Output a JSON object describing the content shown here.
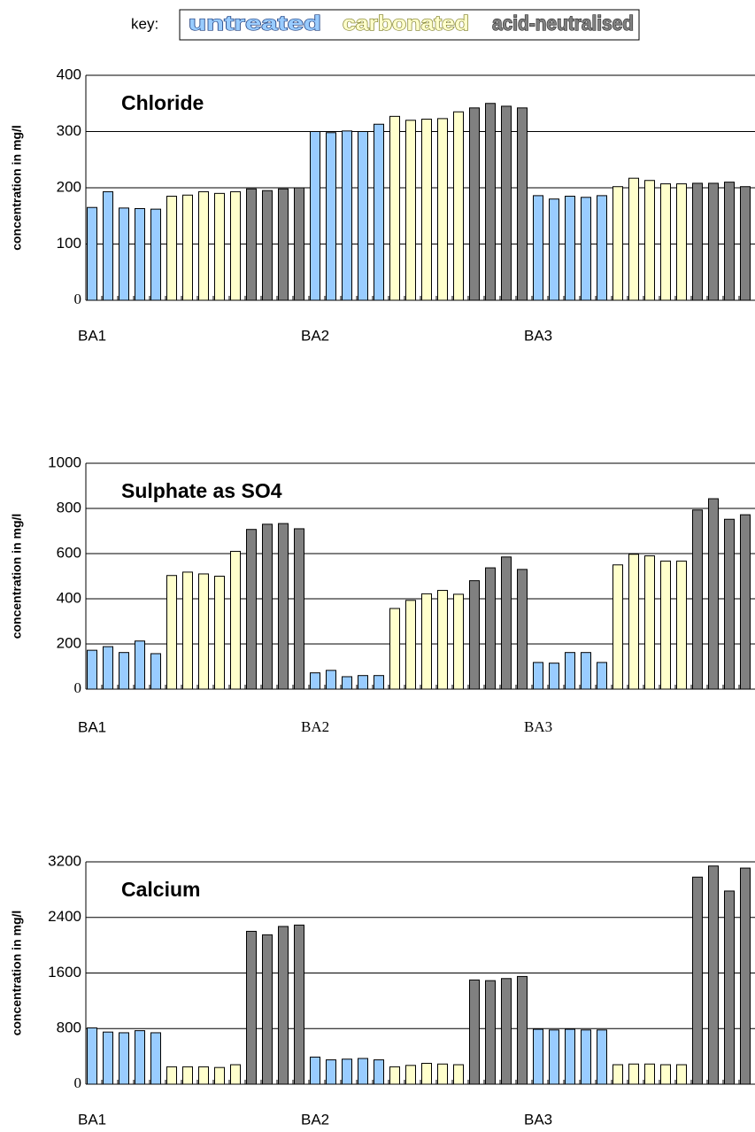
{
  "key": {
    "label": "key:",
    "items": [
      {
        "name": "untreated",
        "color": "#99ccff"
      },
      {
        "name": "carbonated",
        "color": "#ffffcc"
      },
      {
        "name": "acid-neutralised",
        "color": "#808080"
      }
    ]
  },
  "chart_data": [
    {
      "type": "bar",
      "title": "Chloride",
      "y_label": "concentration in mg/l",
      "categories": [
        "BA1",
        null,
        null,
        null,
        null,
        null,
        null,
        null,
        null,
        null,
        null,
        null,
        null,
        null,
        "BA2",
        null,
        null,
        null,
        null,
        null,
        null,
        null,
        null,
        null,
        null,
        null,
        null,
        null,
        "BA3",
        null,
        null,
        null,
        null,
        null,
        null,
        null,
        null,
        null,
        null,
        null,
        null,
        null
      ],
      "series": [
        {
          "values": [
            165,
            193,
            164,
            163,
            162,
            null,
            null,
            null,
            null,
            null,
            null,
            null,
            null,
            null,
            300,
            298,
            301,
            300,
            313,
            null,
            null,
            null,
            null,
            null,
            null,
            null,
            null,
            null,
            186,
            180,
            185,
            183,
            186,
            null,
            null,
            null,
            null,
            null,
            null,
            null,
            null,
            null
          ]
        },
        {
          "values": [
            null,
            null,
            null,
            null,
            null,
            185,
            187,
            193,
            190,
            193,
            null,
            null,
            null,
            null,
            null,
            null,
            null,
            null,
            null,
            327,
            320,
            322,
            323,
            335,
            null,
            null,
            null,
            null,
            null,
            null,
            null,
            null,
            null,
            202,
            217,
            213,
            207,
            207,
            null,
            null,
            null,
            null
          ]
        },
        {
          "values": [
            null,
            null,
            null,
            null,
            null,
            null,
            null,
            null,
            null,
            null,
            198,
            195,
            198,
            200,
            null,
            null,
            null,
            null,
            null,
            null,
            null,
            null,
            null,
            null,
            342,
            350,
            345,
            342,
            null,
            null,
            null,
            null,
            null,
            null,
            null,
            null,
            null,
            null,
            208,
            208,
            210,
            202
          ]
        }
      ],
      "ylim": [
        0,
        400
      ],
      "yticks": [
        0,
        100,
        200,
        300,
        400
      ],
      "grid": true
    },
    {
      "type": "bar",
      "title": "Sulphate as SO4",
      "y_label": "concentration in mg/l",
      "categories": [
        "BA1",
        null,
        null,
        null,
        null,
        null,
        null,
        null,
        null,
        null,
        null,
        null,
        null,
        null,
        "BA2",
        null,
        null,
        null,
        null,
        null,
        null,
        null,
        null,
        null,
        null,
        null,
        null,
        null,
        "BA3",
        null,
        null,
        null,
        null,
        null,
        null,
        null,
        null,
        null,
        null,
        null,
        null,
        null
      ],
      "series": [
        {
          "values": [
            172,
            188,
            162,
            213,
            157,
            null,
            null,
            null,
            null,
            null,
            null,
            null,
            null,
            null,
            72,
            83,
            55,
            60,
            60,
            null,
            null,
            null,
            null,
            null,
            null,
            null,
            null,
            null,
            118,
            115,
            162,
            162,
            118,
            null,
            null,
            null,
            null,
            null,
            null,
            null,
            null,
            null
          ]
        },
        {
          "values": [
            null,
            null,
            null,
            null,
            null,
            503,
            518,
            510,
            500,
            610,
            null,
            null,
            null,
            null,
            null,
            null,
            null,
            null,
            null,
            357,
            393,
            422,
            437,
            420,
            null,
            null,
            null,
            null,
            null,
            null,
            null,
            null,
            null,
            550,
            597,
            590,
            567,
            567,
            null,
            null,
            null,
            null
          ]
        },
        {
          "values": [
            null,
            null,
            null,
            null,
            null,
            null,
            null,
            null,
            null,
            null,
            707,
            730,
            733,
            710,
            null,
            null,
            null,
            null,
            null,
            null,
            null,
            null,
            null,
            null,
            480,
            537,
            585,
            530,
            null,
            null,
            null,
            null,
            null,
            null,
            null,
            null,
            null,
            null,
            793,
            843,
            752,
            772
          ]
        }
      ],
      "ylim": [
        0,
        1000
      ],
      "yticks": [
        0,
        200,
        400,
        600,
        800,
        1000
      ],
      "grid": true
    },
    {
      "type": "bar",
      "title": "Calcium",
      "y_label": "concentration in mg/l",
      "categories": [
        "BA1",
        null,
        null,
        null,
        null,
        null,
        null,
        null,
        null,
        null,
        null,
        null,
        null,
        null,
        "BA2",
        null,
        null,
        null,
        null,
        null,
        null,
        null,
        null,
        null,
        null,
        null,
        null,
        null,
        "BA3",
        null,
        null,
        null,
        null,
        null,
        null,
        null,
        null,
        null,
        null,
        null,
        null,
        null
      ],
      "series": [
        {
          "values": [
            810,
            750,
            740,
            770,
            740,
            null,
            null,
            null,
            null,
            null,
            null,
            null,
            null,
            null,
            390,
            350,
            360,
            370,
            350,
            null,
            null,
            null,
            null,
            null,
            null,
            null,
            null,
            null,
            790,
            780,
            790,
            780,
            780,
            null,
            null,
            null,
            null,
            null,
            null,
            null,
            null,
            null
          ]
        },
        {
          "values": [
            null,
            null,
            null,
            null,
            null,
            250,
            250,
            250,
            240,
            280,
            null,
            null,
            null,
            null,
            null,
            null,
            null,
            null,
            null,
            250,
            270,
            300,
            290,
            280,
            null,
            null,
            null,
            null,
            null,
            null,
            null,
            null,
            null,
            280,
            290,
            290,
            280,
            280,
            null,
            null,
            null,
            null
          ]
        },
        {
          "values": [
            null,
            null,
            null,
            null,
            null,
            null,
            null,
            null,
            null,
            null,
            2200,
            2150,
            2270,
            2290,
            null,
            null,
            null,
            null,
            null,
            null,
            null,
            null,
            null,
            null,
            1500,
            1490,
            1520,
            1550,
            null,
            null,
            null,
            null,
            null,
            null,
            null,
            null,
            null,
            null,
            2980,
            3140,
            2780,
            3110
          ]
        }
      ],
      "ylim": [
        0,
        3200
      ],
      "yticks": [
        0,
        800,
        1600,
        2400,
        3200
      ],
      "grid": true
    }
  ]
}
